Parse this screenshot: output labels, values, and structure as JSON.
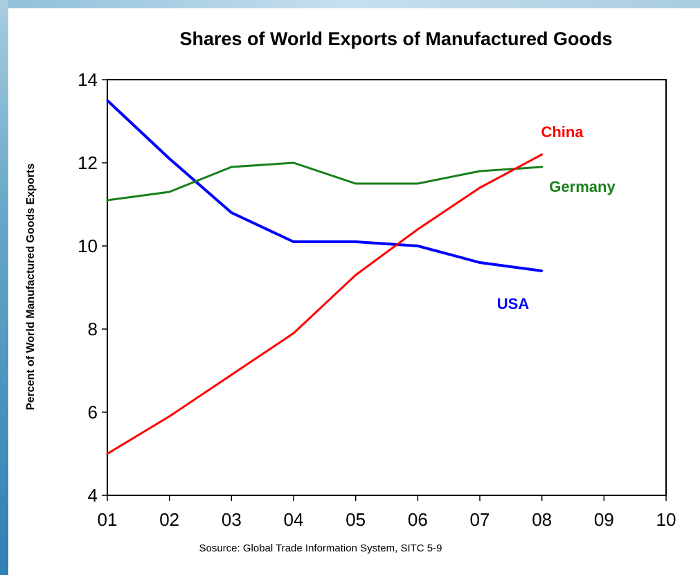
{
  "chart_data": {
    "type": "line",
    "title": "Shares of World Exports of Manufactured Goods",
    "ylabel": "Percent of World Manufactured Goods Exports",
    "xlabel": "",
    "source": "Sosurce: Global Trade Information System, SITC 5-9",
    "x_ticks": [
      "01",
      "02",
      "03",
      "04",
      "05",
      "06",
      "07",
      "08",
      "09",
      "10"
    ],
    "y_ticks": [
      4,
      6,
      8,
      10,
      12,
      14
    ],
    "ylim": [
      4,
      14
    ],
    "xlim": [
      1,
      10
    ],
    "grid": false,
    "x": [
      1,
      2,
      3,
      4,
      5,
      6,
      7,
      8
    ],
    "series": [
      {
        "name": "USA",
        "color": "#0000ff",
        "values": [
          13.5,
          12.1,
          10.8,
          10.1,
          10.1,
          10.0,
          9.6,
          9.4
        ]
      },
      {
        "name": "Germany",
        "color": "#1a7f1a",
        "values": [
          11.1,
          11.3,
          11.9,
          12.0,
          11.5,
          11.5,
          11.8,
          11.9
        ]
      },
      {
        "name": "China",
        "color": "#ff0000",
        "values": [
          5.0,
          5.9,
          6.9,
          7.9,
          9.3,
          10.4,
          11.4,
          12.2
        ]
      }
    ]
  }
}
